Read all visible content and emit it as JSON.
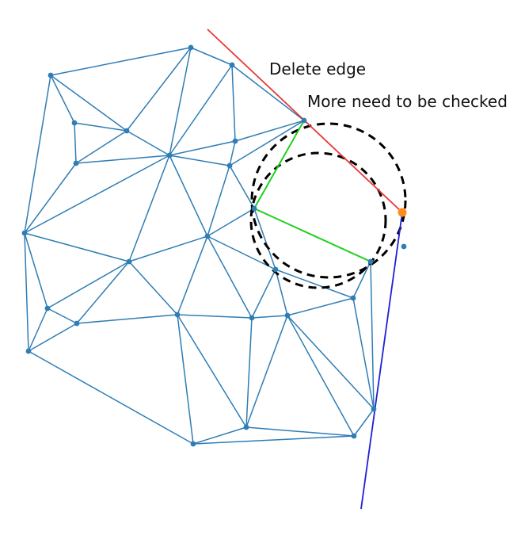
{
  "annotations": {
    "delete_edge": "Delete edge",
    "more_checks": "More need to be checked"
  },
  "colors": {
    "mesh": "#2F7DB5",
    "point": "#2F7DB5",
    "delete_edge": "#E53935",
    "new_edges": "#1ED01E",
    "blue_line": "#1F1FD6",
    "circles": "#000000",
    "highlight_point": "#FF8C1A"
  }
}
